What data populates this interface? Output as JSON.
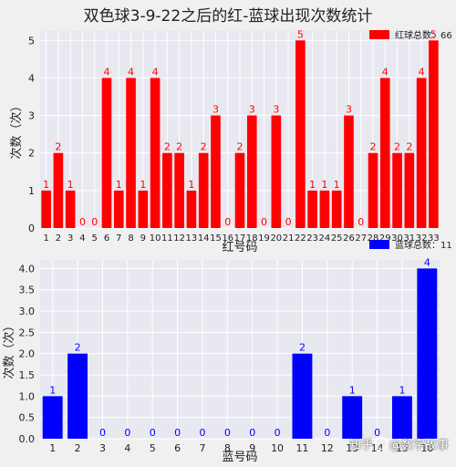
{
  "title": "双色球3-9-22之后的红-蓝球出现次数统计",
  "watermark": {
    "prefix": "知乎",
    "handle": "@数字故事"
  },
  "chart_data": [
    {
      "type": "bar",
      "xlabel": "红号码",
      "ylabel": "次数（次）",
      "legend": "红球总数：66",
      "legend_position": "top-right",
      "color": "#ff0000",
      "grid": true,
      "ylim": [
        0,
        5.25
      ],
      "yticks": [
        "0",
        "1",
        "2",
        "3",
        "4",
        "5"
      ],
      "categories": [
        "1",
        "2",
        "3",
        "4",
        "5",
        "6",
        "7",
        "8",
        "9",
        "10",
        "11",
        "12",
        "13",
        "14",
        "15",
        "16",
        "17",
        "18",
        "19",
        "20",
        "21",
        "22",
        "23",
        "24",
        "25",
        "26",
        "27",
        "28",
        "29",
        "30",
        "31",
        "32",
        "33"
      ],
      "values": [
        1,
        2,
        1,
        0,
        0,
        4,
        1,
        4,
        1,
        4,
        2,
        2,
        1,
        2,
        3,
        0,
        2,
        3,
        0,
        3,
        0,
        5,
        1,
        1,
        1,
        3,
        0,
        2,
        4,
        2,
        2,
        4,
        5
      ]
    },
    {
      "type": "bar",
      "xlabel": "蓝号码",
      "ylabel": "次数（次）",
      "legend": "蓝球总数：11",
      "legend_position": "top-right",
      "color": "#0000ff",
      "grid": true,
      "ylim": [
        0,
        4.2
      ],
      "yticks": [
        "0.0",
        "0.5",
        "1.0",
        "1.5",
        "2.0",
        "2.5",
        "3.0",
        "3.5",
        "4.0"
      ],
      "categories": [
        "1",
        "2",
        "3",
        "4",
        "5",
        "6",
        "7",
        "8",
        "9",
        "10",
        "11",
        "12",
        "13",
        "14",
        "15",
        "16"
      ],
      "values": [
        1,
        2,
        0,
        0,
        0,
        0,
        0,
        0,
        0,
        0,
        2,
        0,
        1,
        0,
        1,
        4
      ]
    }
  ]
}
